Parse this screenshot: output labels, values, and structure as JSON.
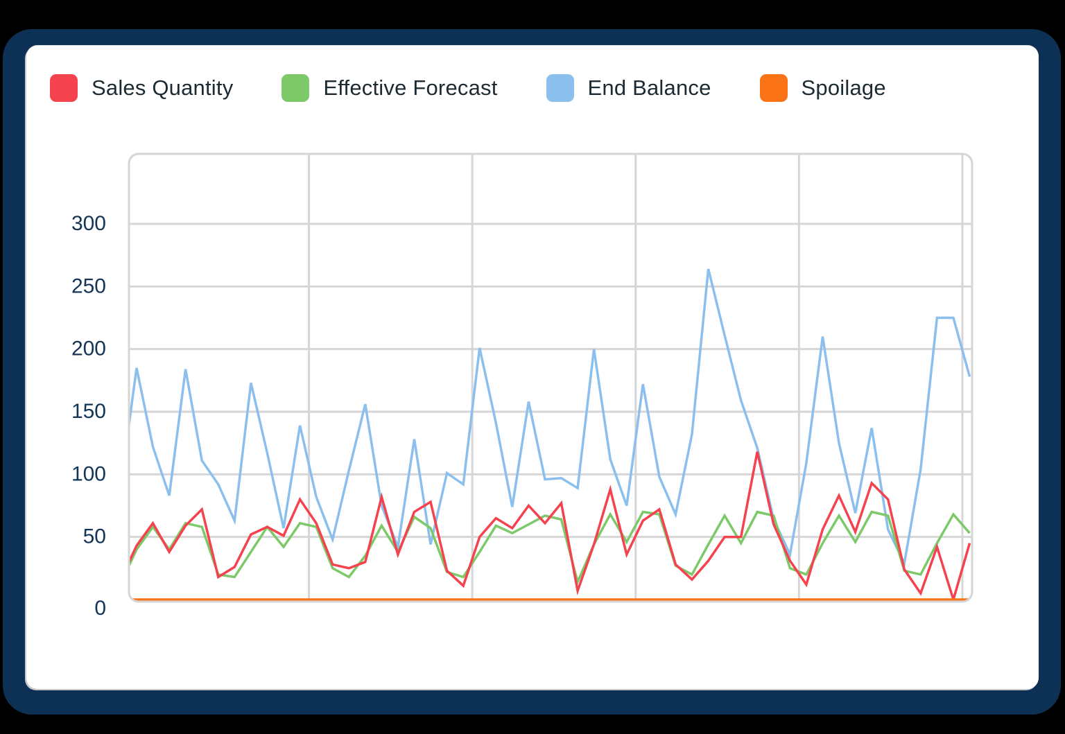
{
  "colors": {
    "background": "#000000",
    "frame": "#0d3055",
    "card": "#ffffff",
    "grid": "#d6d6d6",
    "axis_text": "#14385c"
  },
  "legend": [
    {
      "label": "Sales Quantity",
      "color": "#f5424f",
      "icon": "square-swatch"
    },
    {
      "label": "Effective Forecast",
      "color": "#7dc96a",
      "icon": "square-swatch"
    },
    {
      "label": "End Balance",
      "color": "#8bbfed",
      "icon": "square-swatch"
    },
    {
      "label": "Spoilage",
      "color": "#fa7316",
      "icon": "square-swatch"
    }
  ],
  "chart_data": {
    "type": "line",
    "title": "",
    "xlabel": "",
    "ylabel": "",
    "ylim": [
      0,
      300
    ],
    "yticks": [
      0,
      50,
      100,
      150,
      200,
      250,
      300
    ],
    "grid": true,
    "legend_position": "top",
    "x_tick_labels_visible": false,
    "vertical_grid_every_n_points": 10,
    "x": [
      0,
      1,
      2,
      3,
      4,
      5,
      6,
      7,
      8,
      9,
      10,
      11,
      12,
      13,
      14,
      15,
      16,
      17,
      18,
      19,
      20,
      21,
      22,
      23,
      24,
      25,
      26,
      27,
      28,
      29,
      30,
      31,
      32,
      33,
      34,
      35,
      36,
      37,
      38,
      39,
      40,
      41,
      42,
      43,
      44,
      45,
      46,
      47,
      48,
      49,
      50,
      51,
      52
    ],
    "series": [
      {
        "name": "Sales Quantity",
        "color": "#f5424f",
        "values": [
          15,
          43,
          61,
          38,
          59,
          72,
          18,
          26,
          52,
          58,
          51,
          80,
          61,
          28,
          25,
          30,
          82,
          36,
          70,
          78,
          23,
          11,
          50,
          65,
          57,
          75,
          61,
          77,
          7,
          44,
          88,
          36,
          63,
          72,
          28,
          16,
          31,
          50,
          50,
          118,
          60,
          31,
          12,
          56,
          83,
          54,
          93,
          80,
          24,
          5,
          42,
          0,
          45
        ]
      },
      {
        "name": "Effective Forecast",
        "color": "#7dc96a",
        "values": [
          12,
          40,
          58,
          40,
          61,
          58,
          20,
          18,
          38,
          58,
          42,
          61,
          58,
          25,
          18,
          35,
          59,
          38,
          66,
          57,
          22,
          18,
          38,
          59,
          53,
          60,
          67,
          64,
          14,
          44,
          68,
          46,
          70,
          68,
          27,
          20,
          44,
          67,
          45,
          70,
          67,
          25,
          20,
          45,
          67,
          46,
          70,
          67,
          23,
          20,
          45,
          68,
          53
        ]
      },
      {
        "name": "End Balance",
        "color": "#8bbfed",
        "values": [
          88,
          185,
          122,
          83,
          184,
          111,
          92,
          63,
          173,
          117,
          57,
          139,
          82,
          48,
          103,
          156,
          75,
          42,
          128,
          44,
          101,
          92,
          201,
          141,
          74,
          158,
          96,
          97,
          89,
          200,
          112,
          75,
          172,
          98,
          68,
          132,
          264,
          211,
          159,
          121,
          64,
          36,
          109,
          210,
          125,
          69,
          137,
          56,
          29,
          104,
          225,
          225,
          178
        ]
      },
      {
        "name": "Spoilage",
        "color": "#fa7316",
        "values": [
          0,
          0,
          0,
          0,
          0,
          0,
          0,
          0,
          0,
          0,
          0,
          0,
          0,
          0,
          0,
          0,
          0,
          0,
          0,
          0,
          0,
          0,
          0,
          0,
          0,
          0,
          0,
          0,
          0,
          0,
          0,
          0,
          0,
          0,
          0,
          0,
          0,
          0,
          0,
          0,
          0,
          0,
          0,
          0,
          0,
          0,
          0,
          0,
          0,
          0,
          0,
          0,
          0
        ]
      }
    ]
  }
}
